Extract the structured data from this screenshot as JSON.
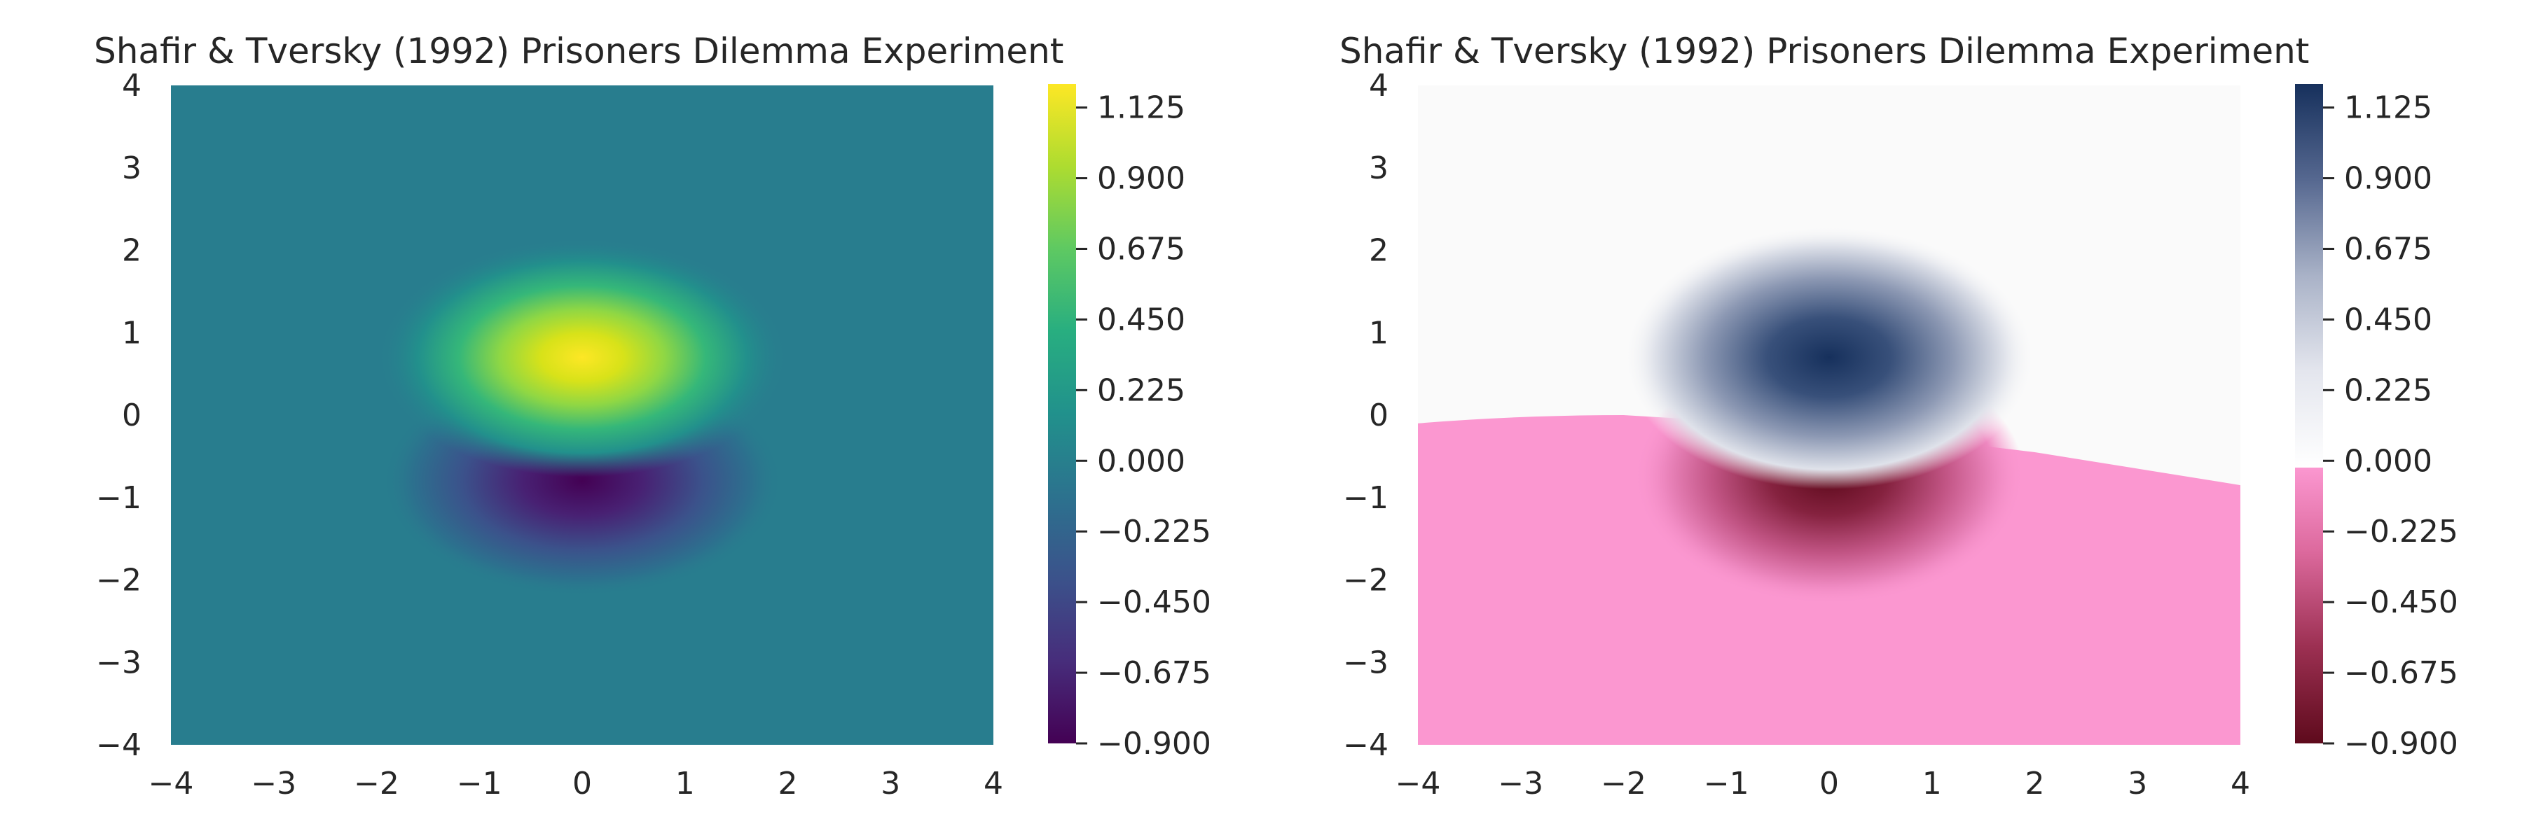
{
  "chart_data": [
    {
      "type": "heatmap",
      "title": "Shafir & Tversky (1992) Prisoners Dilemma Experiment",
      "colormap": "viridis",
      "xlim": [
        -4,
        4
      ],
      "ylim": [
        -4,
        4
      ],
      "xticks": [
        "−4",
        "−3",
        "−2",
        "−1",
        "0",
        "1",
        "2",
        "3",
        "4"
      ],
      "yticks": [
        "−4",
        "−3",
        "−2",
        "−1",
        "0",
        "1",
        "2",
        "3",
        "4"
      ],
      "grid": false,
      "field": {
        "description": "positive lobe peak ~1.2 near (0, 0.7); negative lobe ~-0.9 near (0, -0.75)",
        "positive_peak": {
          "x": 0,
          "y": 0.7,
          "value": 1.2
        },
        "negative_peak": {
          "x": 0,
          "y": -0.75,
          "value": -0.9
        }
      },
      "colorbar": {
        "range": [
          -0.9,
          1.2
        ],
        "ticks": [
          "1.125",
          "0.900",
          "0.675",
          "0.450",
          "0.225",
          "0.000",
          "−0.225",
          "−0.450",
          "−0.675",
          "−0.900"
        ],
        "tick_values": [
          1.125,
          0.9,
          0.675,
          0.45,
          0.225,
          0.0,
          -0.225,
          -0.45,
          -0.675,
          -0.9
        ]
      }
    },
    {
      "type": "heatmap",
      "title": "Shafir & Tversky (1992) Prisoners Dilemma Experiment",
      "colormap": "diverging (pink-to-maroon below 0, white-to-navy above 0)",
      "xlim": [
        -4,
        4
      ],
      "ylim": [
        -4,
        4
      ],
      "xticks": [
        "−4",
        "−3",
        "−2",
        "−1",
        "0",
        "1",
        "2",
        "3",
        "4"
      ],
      "yticks": [
        "−4",
        "−3",
        "−2",
        "−1",
        "0",
        "1",
        "2",
        "3",
        "4"
      ],
      "grid": false,
      "boundary_curve": {
        "description": "curved boundary below which the field is shaded in the negative (pink) scale",
        "points": [
          [
            -4,
            -0.1
          ],
          [
            -2,
            0.0
          ],
          [
            0,
            -0.15
          ],
          [
            2,
            -0.45
          ],
          [
            4,
            -0.85
          ]
        ]
      },
      "colorbar": {
        "range": [
          -0.9,
          1.2
        ],
        "ticks": [
          "1.125",
          "0.900",
          "0.675",
          "0.450",
          "0.225",
          "0.000",
          "−0.225",
          "−0.450",
          "−0.675",
          "−0.900"
        ],
        "tick_values": [
          1.125,
          0.9,
          0.675,
          0.45,
          0.225,
          0.0,
          -0.225,
          -0.45,
          -0.675,
          -0.9
        ]
      }
    }
  ],
  "colors": {
    "text": "#262626",
    "pink_region": "#fb97d0",
    "navy": "#16305c",
    "maroon": "#5e0a1c"
  }
}
